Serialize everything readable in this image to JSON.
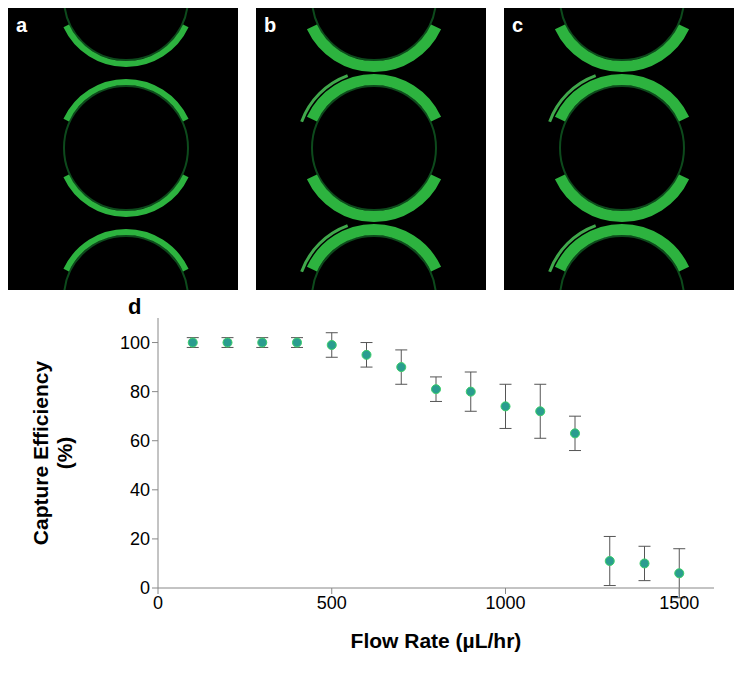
{
  "panels": [
    {
      "label": "a"
    },
    {
      "label": "b"
    },
    {
      "label": "c"
    }
  ],
  "chart_data": {
    "type": "scatter",
    "title": "d",
    "x_label": "Flow Rate (µL/hr)",
    "y_label": "Capture Efficiency (%)",
    "x": [
      100,
      200,
      300,
      400,
      500,
      600,
      700,
      800,
      900,
      1000,
      1100,
      1200,
      1300,
      1400,
      1500
    ],
    "values": [
      100,
      100,
      100,
      100,
      99,
      95,
      90,
      81,
      80,
      74,
      72,
      63,
      11,
      10,
      6
    ],
    "error": [
      2,
      2,
      2,
      2,
      5,
      5,
      7,
      5,
      8,
      9,
      11,
      7,
      10,
      7,
      10
    ],
    "color": "#2a9d8f",
    "marker": "circle",
    "xlim": [
      0,
      1600
    ],
    "xticks": [
      0,
      500,
      1000,
      1500
    ],
    "ylim": [
      0,
      110
    ],
    "yticks": [
      0,
      20,
      40,
      60,
      80,
      100
    ],
    "grid": false
  }
}
